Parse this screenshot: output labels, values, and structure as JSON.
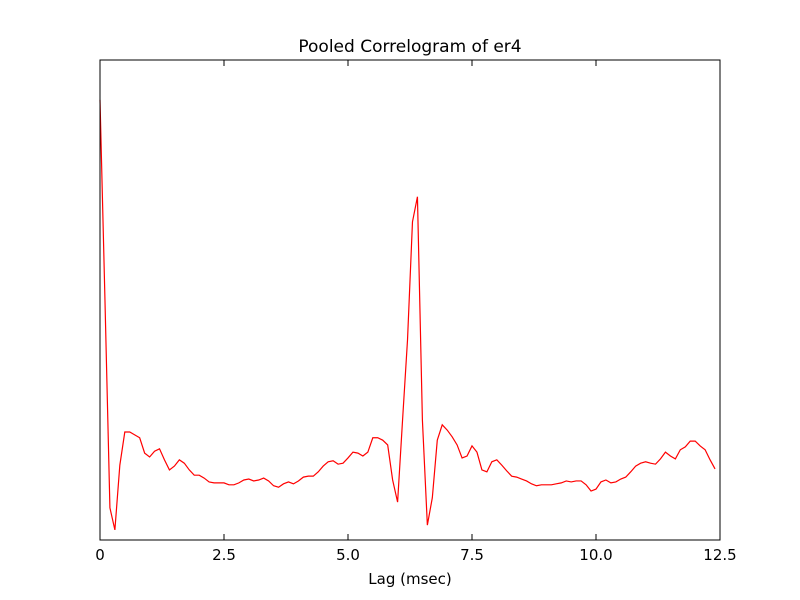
{
  "chart_data": {
    "type": "line",
    "title": "Pooled Correlogram of er4",
    "x_label": "Lag (msec)",
    "x": [
      0,
      0.1,
      0.2,
      0.3,
      0.4,
      0.5,
      0.6,
      0.7,
      0.8,
      0.9,
      1,
      1.1,
      1.2,
      1.3,
      1.4,
      1.5,
      1.6,
      1.7,
      1.8,
      1.9,
      2,
      2.1,
      2.2,
      2.3,
      2.4,
      2.5,
      2.6,
      2.7,
      2.8,
      2.9,
      3,
      3.1,
      3.2,
      3.3,
      3.4,
      3.5,
      3.6,
      3.7,
      3.8,
      3.9,
      4,
      4.1,
      4.2,
      4.3,
      4.4,
      4.5,
      4.6,
      4.7,
      4.8,
      4.9,
      5,
      5.1,
      5.2,
      5.3,
      5.4,
      5.5,
      5.6,
      5.7,
      5.8,
      5.9,
      6,
      6.1,
      6.2,
      6.3,
      6.4,
      6.5,
      6.6,
      6.7,
      6.8,
      6.9,
      7,
      7.1,
      7.2,
      7.3,
      7.4,
      7.5,
      7.6,
      7.7,
      7.8,
      7.9,
      8,
      8.1,
      8.2,
      8.3,
      8.4,
      8.5,
      8.6,
      8.7,
      8.8,
      8.9,
      9,
      9.1,
      9.2,
      9.3,
      9.4,
      9.5,
      9.6,
      9.7,
      9.8,
      9.9,
      10,
      10.1,
      10.2,
      10.3,
      10.4,
      10.5,
      10.6,
      10.7,
      10.8,
      10.9,
      11,
      11.1,
      11.2,
      11.3,
      11.4,
      11.5,
      11.6,
      11.7,
      11.8,
      11.9,
      12,
      12.1,
      12.2,
      12.3,
      12.4
    ],
    "series": [
      {
        "color": "#ff0000",
        "values": [
          0.917,
          0.5,
          0.067,
          0.021,
          0.156,
          0.225,
          0.225,
          0.219,
          0.213,
          0.181,
          0.173,
          0.185,
          0.19,
          0.167,
          0.146,
          0.154,
          0.167,
          0.16,
          0.146,
          0.135,
          0.135,
          0.129,
          0.121,
          0.119,
          0.119,
          0.119,
          0.115,
          0.115,
          0.119,
          0.125,
          0.127,
          0.123,
          0.125,
          0.129,
          0.123,
          0.113,
          0.11,
          0.117,
          0.121,
          0.117,
          0.123,
          0.131,
          0.133,
          0.133,
          0.142,
          0.154,
          0.163,
          0.165,
          0.158,
          0.16,
          0.171,
          0.183,
          0.181,
          0.175,
          0.183,
          0.213,
          0.213,
          0.208,
          0.198,
          0.125,
          0.079,
          0.25,
          0.417,
          0.663,
          0.715,
          0.25,
          0.031,
          0.088,
          0.208,
          0.24,
          0.229,
          0.215,
          0.198,
          0.171,
          0.175,
          0.196,
          0.183,
          0.146,
          0.142,
          0.163,
          0.167,
          0.156,
          0.144,
          0.133,
          0.131,
          0.127,
          0.123,
          0.117,
          0.113,
          0.115,
          0.115,
          0.115,
          0.117,
          0.119,
          0.123,
          0.121,
          0.123,
          0.123,
          0.115,
          0.102,
          0.106,
          0.121,
          0.125,
          0.119,
          0.121,
          0.127,
          0.131,
          0.142,
          0.154,
          0.16,
          0.163,
          0.16,
          0.158,
          0.169,
          0.183,
          0.175,
          0.169,
          0.188,
          0.194,
          0.206,
          0.206,
          0.196,
          0.188,
          0.167,
          0.148
        ]
      }
    ],
    "xlim": [
      0,
      12.5
    ],
    "xticks": [
      0,
      2.5,
      {
        "value": 5,
        "label": "5.0"
      },
      7.5,
      {
        "value": 10,
        "label": "10.0"
      },
      12.5
    ],
    "ylim": [
      0,
      1
    ]
  }
}
